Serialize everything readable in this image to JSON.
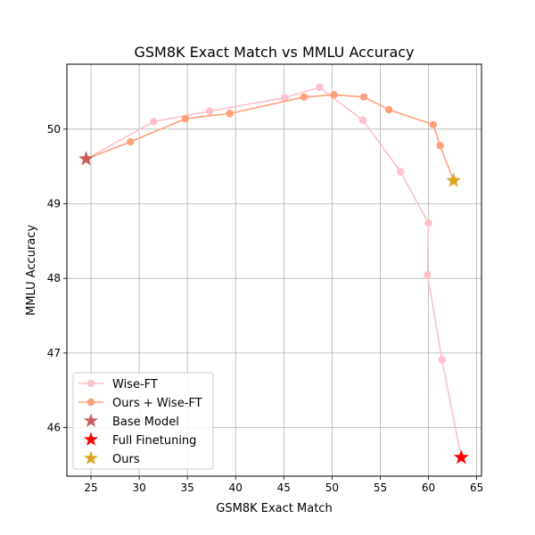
{
  "chart_data": {
    "type": "line",
    "title": "GSM8K Exact Match vs MMLU Accuracy",
    "xlabel": "GSM8K Exact Match",
    "ylabel": "MMLU Accuracy",
    "xlim": [
      22.5,
      65.5
    ],
    "ylim": [
      45.35,
      50.87
    ],
    "xticks": [
      25,
      30,
      35,
      40,
      45,
      50,
      55,
      60,
      65
    ],
    "yticks": [
      46,
      47,
      48,
      49,
      50
    ],
    "grid": true,
    "legend_position": "lower-left",
    "series": [
      {
        "name": "Wise-FT",
        "kind": "line",
        "color": "#ffc0cb",
        "marker": "circle",
        "points": [
          [
            24.5,
            49.6
          ],
          [
            31.5,
            50.1
          ],
          [
            37.3,
            50.24
          ],
          [
            45.1,
            50.42
          ],
          [
            48.7,
            50.56
          ],
          [
            53.2,
            50.12
          ],
          [
            57.1,
            49.43
          ],
          [
            60.0,
            48.74
          ],
          [
            59.9,
            48.05
          ],
          [
            61.4,
            46.91
          ],
          [
            63.4,
            45.6
          ]
        ]
      },
      {
        "name": "Ours + Wise-FT",
        "kind": "line",
        "color": "#ffa07a",
        "marker": "circle",
        "points": [
          [
            24.5,
            49.6
          ],
          [
            29.1,
            49.83
          ],
          [
            34.8,
            50.14
          ],
          [
            39.4,
            50.21
          ],
          [
            47.1,
            50.43
          ],
          [
            50.2,
            50.46
          ],
          [
            53.3,
            50.43
          ],
          [
            55.9,
            50.26
          ],
          [
            60.5,
            50.06
          ],
          [
            61.2,
            49.78
          ],
          [
            62.6,
            49.31
          ]
        ]
      },
      {
        "name": "Base Model",
        "kind": "star",
        "color": "#cd5c5c",
        "points": [
          [
            24.5,
            49.6
          ]
        ]
      },
      {
        "name": "Full Finetuning",
        "kind": "star",
        "color": "#ff0000",
        "points": [
          [
            63.4,
            45.6
          ]
        ]
      },
      {
        "name": "Ours",
        "kind": "star",
        "color": "#daa520",
        "points": [
          [
            62.6,
            49.31
          ]
        ]
      }
    ]
  }
}
